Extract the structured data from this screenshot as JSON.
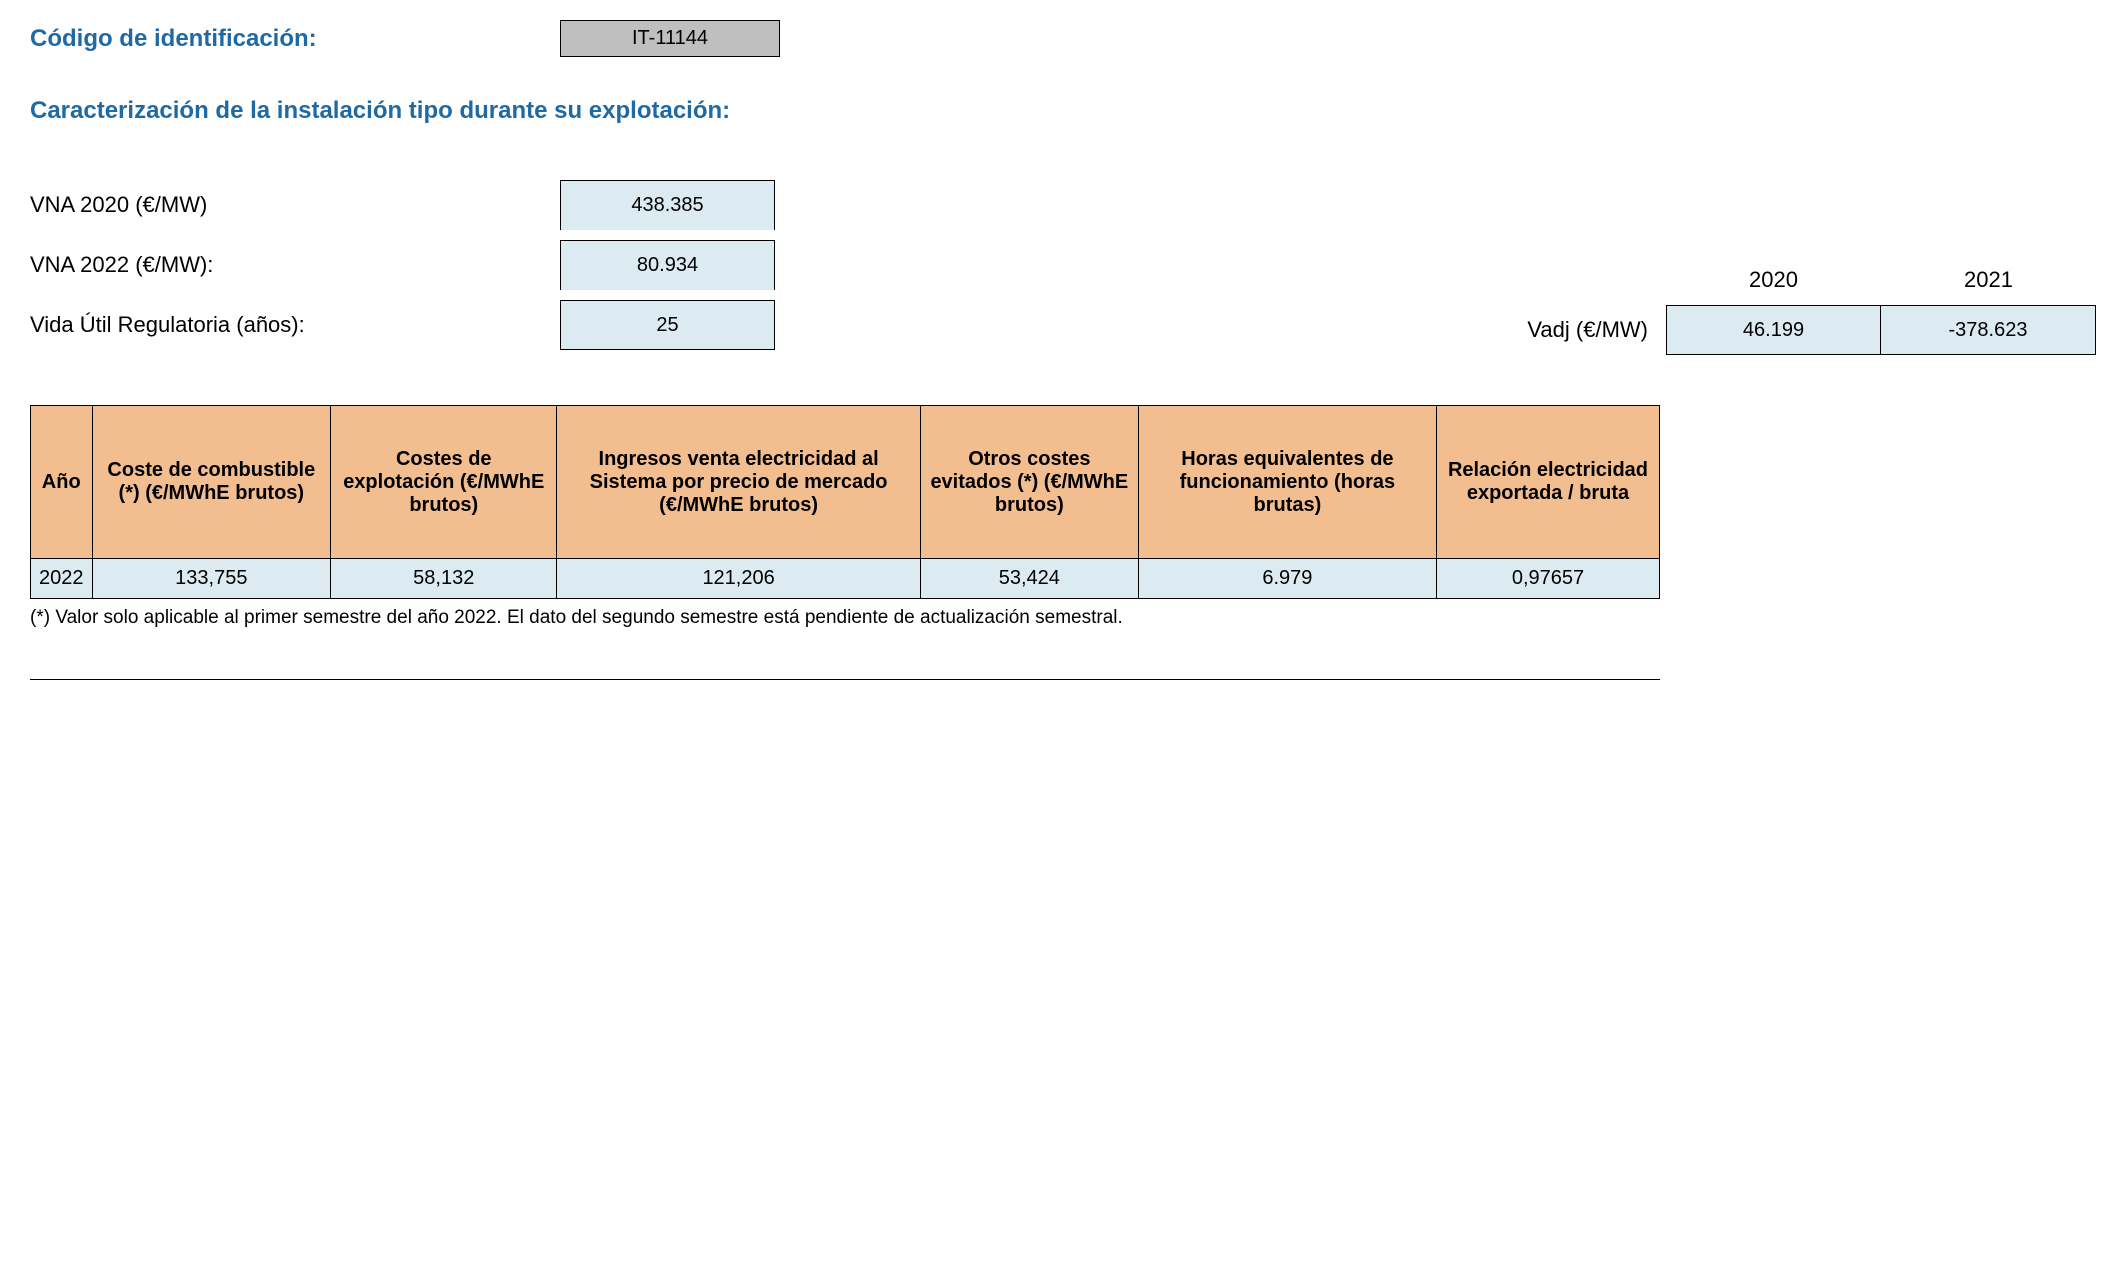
{
  "header": {
    "label": "Código de identificación:",
    "id_value": "IT-11144"
  },
  "section_title": "Caracterización de la instalación tipo durante su explotación:",
  "params": {
    "vna2020_label": "VNA 2020 (€/MW)",
    "vna2020_value": "438.385",
    "vna2022_label": "VNA 2022 (€/MW):",
    "vna2022_value": "80.934",
    "vidautil_label": "Vida Útil Regulatoria (años):",
    "vidautil_value": "25"
  },
  "vadj": {
    "label": "Vadj (€/MW)",
    "year1": "2020",
    "year2": "2021",
    "value1": "46.199",
    "value2": "-378.623"
  },
  "table": {
    "headers": {
      "c0": "Año",
      "c1": "Coste de combustible (*) (€/MWhE brutos)",
      "c2": "Costes de explotación (€/MWhE brutos)",
      "c3": "Ingresos venta electricidad al Sistema por precio de mercado (€/MWhE brutos)",
      "c4": "Otros costes evitados (*) (€/MWhE brutos)",
      "c5": "Horas equivalentes de funcionamiento (horas brutas)",
      "c6": "Relación electricidad exportada / bruta"
    },
    "row": {
      "c0": "2022",
      "c1": "133,755",
      "c2": "58,132",
      "c3": "121,206",
      "c4": "53,424",
      "c5": "6.979",
      "c6": "0,97657"
    }
  },
  "footnote": "(*) Valor solo aplicable al primer semestre del año 2022. El dato del segundo semestre está pendiente de actualización semestral.",
  "colors": {
    "heading": "#1f6aa5",
    "idbox_bg": "#bfbfbf",
    "lightblue_bg": "#dcebf1",
    "orange_bg": "#f3be8f",
    "border": "#000000"
  }
}
